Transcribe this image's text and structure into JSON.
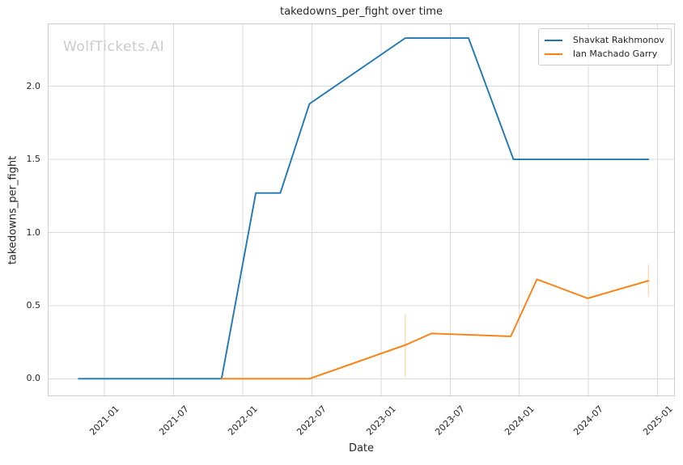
{
  "chart_data": {
    "type": "line",
    "title": "takedowns_per_fight over time",
    "xlabel": "Date",
    "ylabel": "takedowns_per_fight",
    "watermark": "WolfTickets.AI",
    "grid": true,
    "legend_location": "upper right",
    "x_ticks": [
      "2021-01",
      "2021-07",
      "2022-01",
      "2022-07",
      "2023-01",
      "2023-07",
      "2024-01",
      "2024-07",
      "2025-01"
    ],
    "y_ticks": [
      0.0,
      0.5,
      1.0,
      1.5,
      2.0
    ],
    "xlim_decimal_years": [
      2020.59,
      2025.125
    ],
    "ylim": [
      -0.12,
      2.43
    ],
    "style": {
      "grid_color": "#d9d9d9",
      "spine_color": "#cccccc",
      "text_color": "#262626",
      "watermark_color": "#cbcbcb",
      "background": "#ffffff"
    },
    "series": [
      {
        "name": "Shavkat Rakhmonov",
        "color": "#1f77b4",
        "points": [
          {
            "date": "2020-10-24",
            "value": 0.0
          },
          {
            "date": "2021-11-06",
            "value": 0.0
          },
          {
            "date": "2022-02-05",
            "value": 1.27
          },
          {
            "date": "2022-04-09",
            "value": 1.27
          },
          {
            "date": "2022-06-25",
            "value": 1.88
          },
          {
            "date": "2023-03-04",
            "value": 2.33
          },
          {
            "date": "2023-08-19",
            "value": 2.33
          },
          {
            "date": "2023-12-16",
            "value": 1.5
          },
          {
            "date": "2024-12-07",
            "value": 1.5
          }
        ],
        "error_bars": []
      },
      {
        "name": "Ian Machado Garry",
        "color": "#ff7f0e",
        "points": [
          {
            "date": "2021-11-06",
            "value": 0.0
          },
          {
            "date": "2022-06-25",
            "value": 0.0
          },
          {
            "date": "2023-03-04",
            "value": 0.23
          },
          {
            "date": "2023-05-13",
            "value": 0.31
          },
          {
            "date": "2023-12-09",
            "value": 0.29
          },
          {
            "date": "2024-02-17",
            "value": 0.68
          },
          {
            "date": "2024-06-29",
            "value": 0.55
          },
          {
            "date": "2024-12-07",
            "value": 0.67
          }
        ],
        "error_bars": [
          {
            "date": "2023-03-04",
            "low": 0.01,
            "high": 0.44
          },
          {
            "date": "2024-12-07",
            "low": 0.56,
            "high": 0.78
          }
        ]
      }
    ]
  }
}
